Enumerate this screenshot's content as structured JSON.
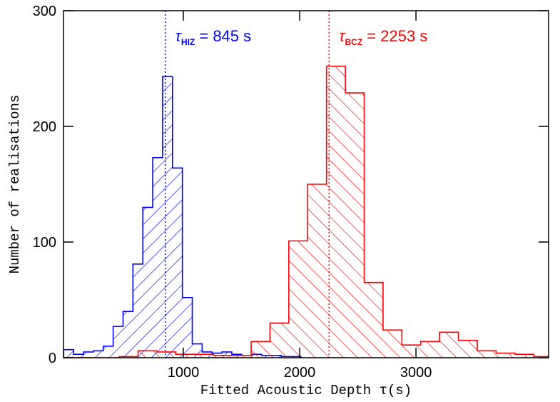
{
  "chart_data": {
    "type": "histogram",
    "xlabel": "Fitted Acoustic Depth τ(s)",
    "ylabel": "Number of realisations",
    "xlim": [
      -30,
      4140
    ],
    "xticks": [
      1000,
      2000,
      3000
    ],
    "ylim": [
      0,
      300
    ],
    "yticks": [
      0,
      100,
      200,
      300
    ],
    "series": [
      {
        "name": "HIZ",
        "color": "#0000ff",
        "hatch": "/",
        "bins": [
          -28,
          57,
          142,
          227,
          312,
          397,
          482,
          567,
          652,
          737,
          822,
          907,
          992,
          1077,
          1162,
          1247,
          1332,
          1417,
          1502,
          1587,
          1672,
          1757,
          1842,
          1927,
          2012
        ],
        "values": [
          7,
          3,
          5,
          6,
          10,
          27,
          40,
          81,
          130,
          173,
          243,
          164,
          52,
          12,
          5,
          4,
          5,
          3,
          2,
          3,
          2,
          2,
          1,
          1
        ]
      },
      {
        "name": "BCZ",
        "color": "#ff0000",
        "hatch": "\\",
        "bins": [
          -37,
          125,
          287,
          449,
          611,
          773,
          935,
          1097,
          1259,
          1421,
          1583,
          1745,
          1907,
          2069,
          2231,
          2393,
          2555,
          2717,
          2879,
          3041,
          3203,
          3365,
          3527,
          3689,
          3851,
          4013,
          4175
        ],
        "values": [
          0,
          0,
          0,
          1,
          6,
          5,
          3,
          3,
          2,
          2,
          14,
          30,
          101,
          150,
          252,
          229,
          65,
          24,
          11,
          14,
          22,
          15,
          6,
          4,
          3,
          1
        ]
      }
    ],
    "annotations": [
      {
        "symbol": "τ",
        "sub": "HIZ",
        "text": " = 845 s",
        "value": 845,
        "color": "#0000ff"
      },
      {
        "symbol": "τ",
        "sub": "BCZ",
        "text": " = 2253 s",
        "value": 2253,
        "color": "#ff0000"
      }
    ]
  }
}
